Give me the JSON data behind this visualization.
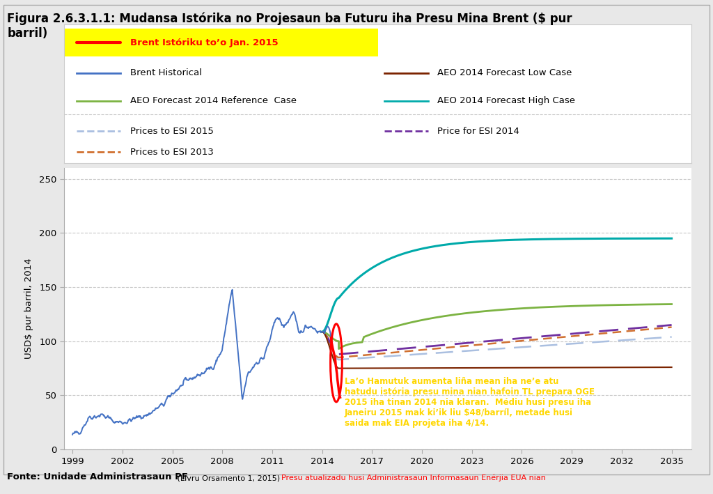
{
  "title_line1": "Figura 2.6.3.1.1: Mudansa Istórika no Projesaun ba Futuru iha Presu Mina Brent ($ pur",
  "title_line2": "barril)",
  "ylabel": "USD$ pur barril, 2014",
  "xlim": [
    1998.5,
    2036.2
  ],
  "ylim": [
    0,
    260
  ],
  "xticks": [
    1999,
    2002,
    2005,
    2008,
    2011,
    2014,
    2017,
    2020,
    2023,
    2026,
    2029,
    2032,
    2035
  ],
  "yticks": [
    0,
    50,
    100,
    150,
    200,
    250
  ],
  "footer_black": "Fonte: Unidade Administrasaun PF",
  "footer_small": " (Livru Orsamento 1, 2015) ",
  "footer_red": "Presu atualizadu husi Administrasaun Informasaun Enérjia EUA nian",
  "annotation_text": "La’o Hamutuk aumenta liña mean iha ne’e atu\nhatudu istória presu mina nian hafoin TL prepara OGE\n2015 iha tinan 2014 nia klaran.  Médiu husi presu iha\nJaneiru 2015 mak ki’ik liu $48/barríl, metade husi\nsaida mak EIA projeta iha 4/14.",
  "legend_highlight_label": "Brent Istóriku to’o Jan. 2015",
  "bg_color": "#e8e8e8",
  "plot_bg_color": "#ffffff",
  "color_historical": "#4472C4",
  "color_red_highlight": "#ff0000",
  "color_high": "#00AAAA",
  "color_ref": "#7CB342",
  "color_low": "#7B2400",
  "color_esi2015": "#AABFE0",
  "color_esi2014": "#7030A0",
  "color_esi2013": "#D07030"
}
